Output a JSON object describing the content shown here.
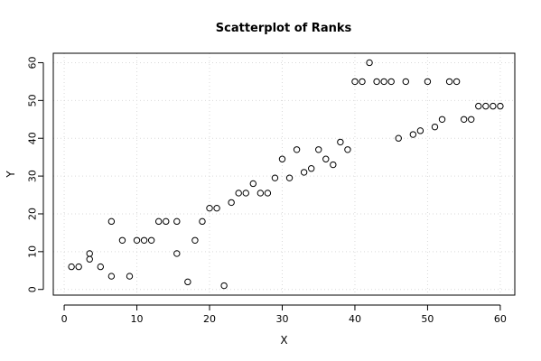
{
  "chart_data": {
    "type": "scatter",
    "title": "Scatterplot of Ranks",
    "xlabel": "X",
    "ylabel": "Y",
    "xlim": [
      -1.5,
      62
    ],
    "ylim": [
      -1.5,
      62.5
    ],
    "xticks": [
      0,
      10,
      20,
      30,
      40,
      50,
      60
    ],
    "yticks": [
      0,
      10,
      20,
      30,
      40,
      50,
      60
    ],
    "grid": true,
    "legend": "none",
    "points": [
      {
        "x": 1,
        "y": 6
      },
      {
        "x": 2,
        "y": 6
      },
      {
        "x": 3.5,
        "y": 8
      },
      {
        "x": 3.5,
        "y": 9.5
      },
      {
        "x": 5,
        "y": 6
      },
      {
        "x": 6.5,
        "y": 3.5
      },
      {
        "x": 6.5,
        "y": 18
      },
      {
        "x": 8,
        "y": 13
      },
      {
        "x": 9,
        "y": 3.5
      },
      {
        "x": 10,
        "y": 13
      },
      {
        "x": 11,
        "y": 13
      },
      {
        "x": 12,
        "y": 13
      },
      {
        "x": 13,
        "y": 18
      },
      {
        "x": 14,
        "y": 18
      },
      {
        "x": 15.5,
        "y": 9.5
      },
      {
        "x": 15.5,
        "y": 18
      },
      {
        "x": 17,
        "y": 2
      },
      {
        "x": 18,
        "y": 13
      },
      {
        "x": 19,
        "y": 18
      },
      {
        "x": 20,
        "y": 21.5
      },
      {
        "x": 21,
        "y": 21.5
      },
      {
        "x": 22,
        "y": 1
      },
      {
        "x": 23,
        "y": 23
      },
      {
        "x": 24,
        "y": 25.5
      },
      {
        "x": 25,
        "y": 25.5
      },
      {
        "x": 26,
        "y": 28
      },
      {
        "x": 27,
        "y": 25.5
      },
      {
        "x": 28,
        "y": 25.5
      },
      {
        "x": 29,
        "y": 29.5
      },
      {
        "x": 30,
        "y": 34.5
      },
      {
        "x": 31,
        "y": 29.5
      },
      {
        "x": 32,
        "y": 37
      },
      {
        "x": 33,
        "y": 31
      },
      {
        "x": 34,
        "y": 32
      },
      {
        "x": 35,
        "y": 37
      },
      {
        "x": 36,
        "y": 34.5
      },
      {
        "x": 37,
        "y": 33
      },
      {
        "x": 38,
        "y": 39
      },
      {
        "x": 39,
        "y": 37
      },
      {
        "x": 40,
        "y": 55
      },
      {
        "x": 41,
        "y": 55
      },
      {
        "x": 42,
        "y": 60
      },
      {
        "x": 43,
        "y": 55
      },
      {
        "x": 44,
        "y": 55
      },
      {
        "x": 45,
        "y": 55
      },
      {
        "x": 46,
        "y": 40
      },
      {
        "x": 47,
        "y": 55
      },
      {
        "x": 48,
        "y": 41
      },
      {
        "x": 49,
        "y": 42
      },
      {
        "x": 50,
        "y": 55
      },
      {
        "x": 51,
        "y": 43
      },
      {
        "x": 52,
        "y": 45
      },
      {
        "x": 53,
        "y": 55
      },
      {
        "x": 54,
        "y": 55
      },
      {
        "x": 55,
        "y": 45
      },
      {
        "x": 56,
        "y": 45
      },
      {
        "x": 57,
        "y": 48.5
      },
      {
        "x": 58,
        "y": 48.5
      },
      {
        "x": 59,
        "y": 48.5
      },
      {
        "x": 60,
        "y": 48.5
      }
    ]
  }
}
